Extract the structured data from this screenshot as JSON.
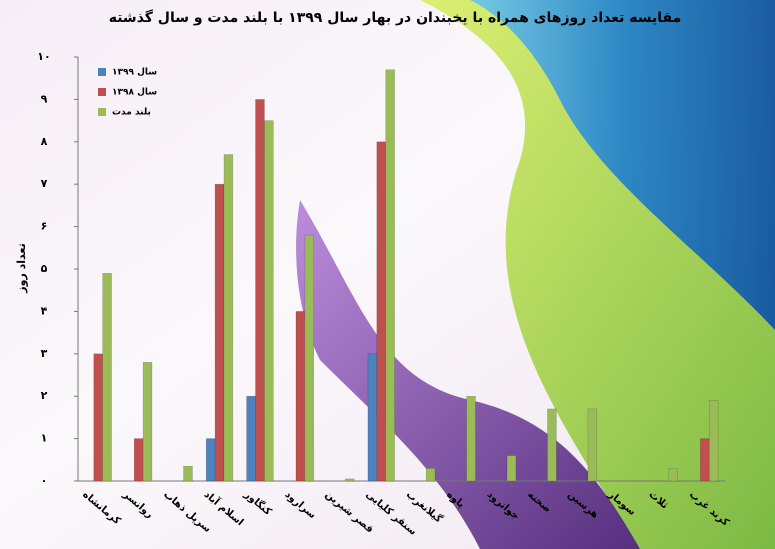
{
  "chart_data": {
    "type": "bar",
    "title": "مقایسه تعداد روزهای همراه با یخبندان در بهار سال ۱۳۹۹ با بلند مدت و سال گذشته",
    "y_label": "تعداد روز",
    "categories": [
      "کرمانشاه",
      "روانسر",
      "سرپل ذهاب",
      "اسلام آباد",
      "کنگاور",
      "سرارود",
      "قصر شیرین",
      "سنقر کلیایی",
      "گیلانغرب",
      "پاوه",
      "جوانرود",
      "صحنه",
      "هرسین",
      "سومار",
      "ثلاث",
      "کرند غرب"
    ],
    "series": [
      {
        "name": "سال ۱۳۹۹",
        "color": "#4f81bd",
        "values": [
          0,
          0,
          0,
          1,
          2,
          0,
          0,
          3,
          0,
          0,
          0,
          0,
          0,
          0,
          0,
          0
        ]
      },
      {
        "name": "سال ۱۳۹۸",
        "color": "#c0504d",
        "values": [
          3,
          1,
          0,
          7,
          9,
          4,
          0,
          8,
          0,
          0,
          0,
          0,
          0,
          0,
          0,
          1
        ]
      },
      {
        "name": "بلند مدت",
        "color": "#9bbb59",
        "values": [
          4.9,
          2.8,
          0.35,
          7.7,
          8.5,
          5.8,
          0.05,
          9.7,
          0.3,
          2.0,
          0.6,
          1.7,
          1.7,
          0,
          0.3,
          1.9
        ]
      }
    ],
    "ylim": [
      0,
      10
    ],
    "yticks": [
      {
        "value": 0,
        "label": "۰"
      },
      {
        "value": 1,
        "label": "۱"
      },
      {
        "value": 2,
        "label": "۲"
      },
      {
        "value": 3,
        "label": "۳"
      },
      {
        "value": 4,
        "label": "۴"
      },
      {
        "value": 5,
        "label": "۵"
      },
      {
        "value": 6,
        "label": "۶"
      },
      {
        "value": 7,
        "label": "۷"
      },
      {
        "value": 8,
        "label": "۸"
      },
      {
        "value": 9,
        "label": "۹"
      },
      {
        "value": 10,
        "label": "۱۰"
      }
    ],
    "grid": false,
    "legend": "top-left"
  }
}
